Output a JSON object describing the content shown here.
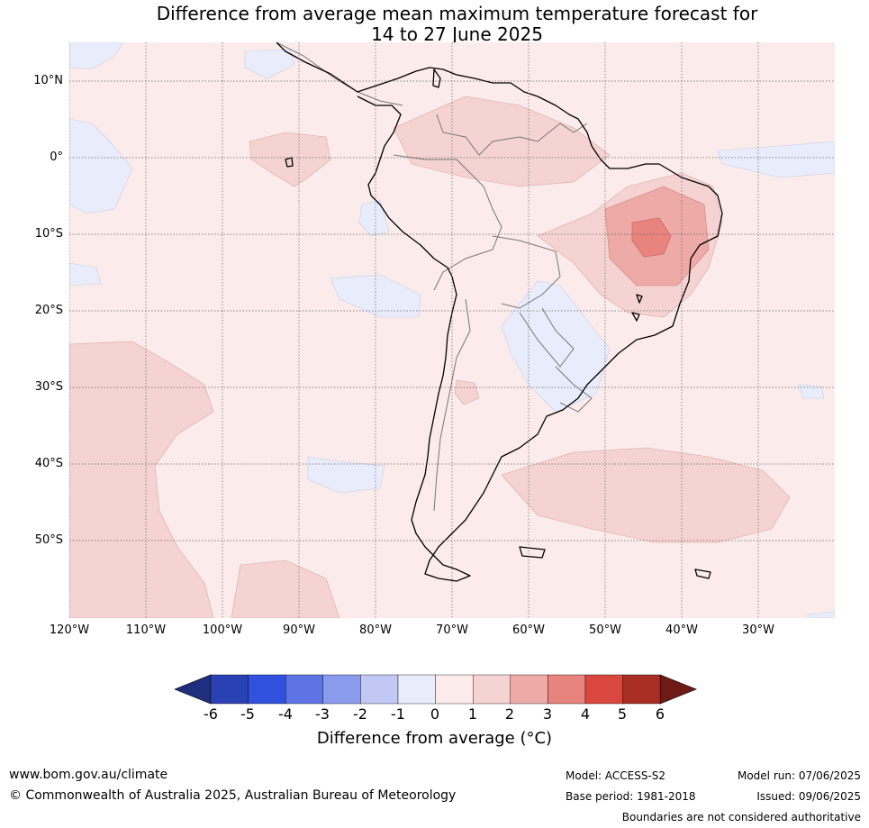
{
  "title": {
    "line1": "Difference from average mean maximum temperature forecast for",
    "line2": "14 to 27 June 2025"
  },
  "map": {
    "lat_labels": [
      "10°N",
      "0°",
      "10°S",
      "20°S",
      "30°S",
      "40°S",
      "50°S"
    ],
    "lon_labels": [
      "120°W",
      "110°W",
      "100°W",
      "90°W",
      "80°W",
      "70°W",
      "60°W",
      "50°W",
      "40°W",
      "30°W"
    ],
    "extent": {
      "lon": [
        -120,
        -20
      ],
      "lat": [
        -60,
        15
      ]
    },
    "base_color": "#fbebea"
  },
  "colorbar": {
    "ticks": [
      "-6",
      "-5",
      "-4",
      "-3",
      "-2",
      "-1",
      "0",
      "1",
      "2",
      "3",
      "4",
      "5",
      "6"
    ],
    "colors": [
      "#1f2e7f",
      "#2a41b3",
      "#3050e0",
      "#5e74e4",
      "#8a9bec",
      "#c0c8f3",
      "#e8ecfb",
      "#fbebea",
      "#f5d3d2",
      "#edaaa7",
      "#e8837d",
      "#d9473e",
      "#a82d23",
      "#6e1b16"
    ],
    "label": "Difference from average (°C)"
  },
  "footer": {
    "website": "www.bom.gov.au/climate",
    "copyright": "© Commonwealth of Australia 2025, Australian Bureau of Meteorology",
    "model": "Model: ACCESS-S2",
    "base_period": "Base period: 1981-2018",
    "model_run": "Model run: 07/06/2025",
    "issued": "Issued: 09/06/2025",
    "disclaimer": "Boundaries are not considered authoritative"
  }
}
